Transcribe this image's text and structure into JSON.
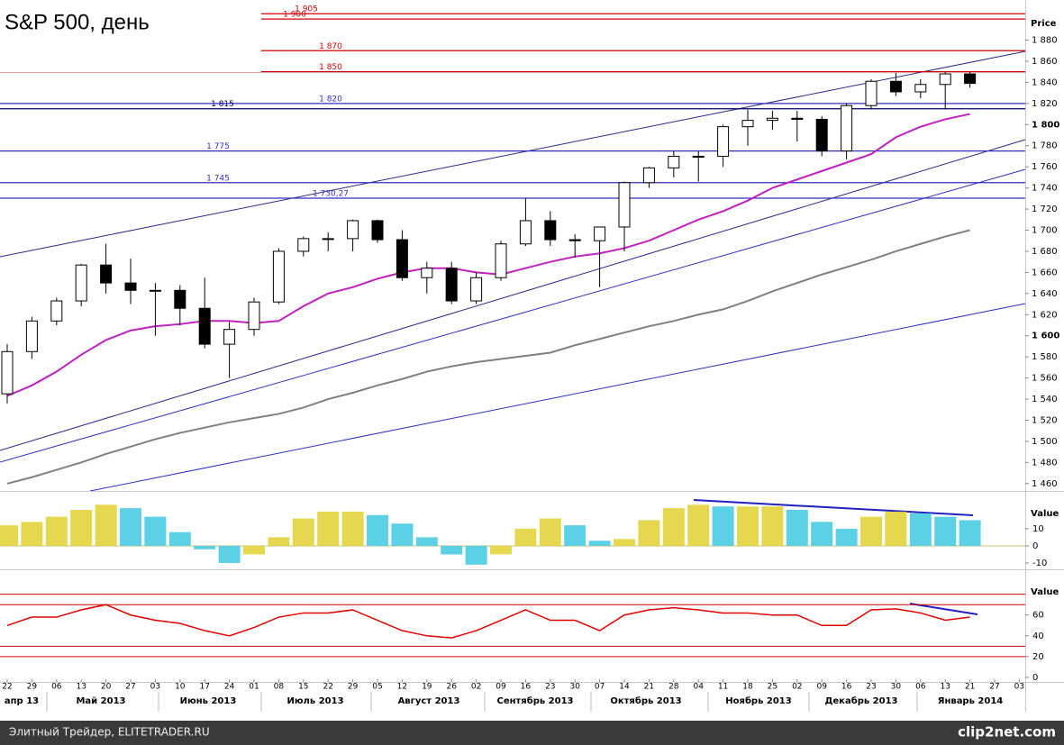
{
  "chart_data": {
    "type": "candlestick",
    "title": "S&P 500, день",
    "price_axis_title": "Price",
    "categories": [
      "22",
      "29",
      "06",
      "13",
      "20",
      "27",
      "03",
      "10",
      "17",
      "24",
      "01",
      "08",
      "15",
      "22",
      "29",
      "05",
      "12",
      "19",
      "26",
      "02",
      "09",
      "16",
      "23",
      "30",
      "07",
      "14",
      "21",
      "28",
      "04",
      "11",
      "18",
      "25",
      "02",
      "09",
      "16",
      "23",
      "30",
      "06",
      "13",
      "21",
      "27",
      "03"
    ],
    "months": [
      "апр 13",
      "Май 2013",
      "Июнь 2013",
      "Июль 2013",
      "Август 2013",
      "Сентябрь 2013",
      "Октябрь 2013",
      "Ноябрь 2013",
      "Декабрь 2013",
      "Январь 2014"
    ],
    "open": [
      1545,
      1585,
      1614,
      1633,
      1667,
      1650,
      1643,
      1643,
      1626,
      1592,
      1606,
      1632,
      1680,
      1692,
      1692,
      1709,
      1691,
      1655,
      1664,
      1633,
      1655,
      1687,
      1709,
      1691,
      1690,
      1703,
      1745,
      1759,
      1770,
      1770,
      1798,
      1804,
      1806,
      1805,
      1775,
      1818,
      1841,
      1831,
      1838,
      1848,
      null,
      null
    ],
    "high": [
      1592,
      1618,
      1636,
      1668,
      1687,
      1673,
      1650,
      1648,
      1655,
      1613,
      1636,
      1683,
      1694,
      1698,
      1710,
      1710,
      1700,
      1670,
      1670,
      1660,
      1690,
      1730,
      1718,
      1696,
      1703,
      1746,
      1760,
      1775,
      1775,
      1800,
      1814,
      1813,
      1813,
      1808,
      1820,
      1843,
      1849,
      1843,
      1850,
      1850,
      null,
      null
    ],
    "low": [
      1536,
      1578,
      1610,
      1628,
      1640,
      1630,
      1600,
      1610,
      1588,
      1560,
      1600,
      1630,
      1675,
      1680,
      1680,
      1688,
      1652,
      1640,
      1630,
      1630,
      1652,
      1685,
      1685,
      1674,
      1646,
      1680,
      1740,
      1750,
      1746,
      1760,
      1780,
      1795,
      1784,
      1770,
      1767,
      1815,
      1827,
      1825,
      1815,
      1835,
      null,
      null
    ],
    "close": [
      1585,
      1614,
      1633,
      1667,
      1650,
      1643,
      1643,
      1626,
      1592,
      1606,
      1632,
      1680,
      1692,
      1692,
      1709,
      1691,
      1655,
      1664,
      1633,
      1655,
      1687,
      1709,
      1691,
      1690,
      1703,
      1745,
      1759,
      1770,
      1770,
      1798,
      1804,
      1806,
      1805,
      1775,
      1818,
      1841,
      1831,
      1838,
      1848,
      1839,
      null,
      null
    ],
    "candle_colors": {
      "up": "#ffffff",
      "down": "#000000",
      "edge": "#000000"
    },
    "series": [
      {
        "color": "#c020c0",
        "values": [
          1543,
          1553,
          1566,
          1582,
          1596,
          1605,
          1609,
          1611,
          1614,
          1614,
          1612,
          1614,
          1628,
          1640,
          1646,
          1654,
          1660,
          1664,
          1664,
          1660,
          1658,
          1664,
          1670,
          1675,
          1678,
          1683,
          1690,
          1700,
          1710,
          1718,
          1728,
          1740,
          1748,
          1756,
          1764,
          1772,
          1788,
          1798,
          1805,
          1810,
          null,
          null
        ]
      },
      {
        "color": "#808080",
        "values": [
          1460,
          1466,
          1473,
          1480,
          1488,
          1495,
          1502,
          1508,
          1513,
          1518,
          1522,
          1526,
          1532,
          1540,
          1546,
          1553,
          1559,
          1566,
          1571,
          1575,
          1578,
          1581,
          1584,
          1591,
          1597,
          1603,
          1609,
          1614,
          1620,
          1625,
          1633,
          1642,
          1650,
          1658,
          1665,
          1672,
          1680,
          1687,
          1694,
          1700,
          null,
          null
        ]
      }
    ],
    "ylim": [
      1453,
      1918
    ],
    "yticks": [
      {
        "value": 1460,
        "label": "1 460"
      },
      {
        "value": 1480,
        "label": "1 480"
      },
      {
        "value": 1500,
        "label": "1 500"
      },
      {
        "value": 1520,
        "label": "1 520"
      },
      {
        "value": 1540,
        "label": "1 540"
      },
      {
        "value": 1560,
        "label": "1 560"
      },
      {
        "value": 1580,
        "label": "1 580"
      },
      {
        "value": 1600,
        "label": "1 600"
      },
      {
        "value": 1620,
        "label": "1 620"
      },
      {
        "value": 1640,
        "label": "1 640"
      },
      {
        "value": 1660,
        "label": "1 660"
      },
      {
        "value": 1680,
        "label": "1 680"
      },
      {
        "value": 1700,
        "label": "1 700"
      },
      {
        "value": 1720,
        "label": "1 720"
      },
      {
        "value": 1740,
        "label": "1 740"
      },
      {
        "value": 1760,
        "label": "1 760"
      },
      {
        "value": 1780,
        "label": "1 780"
      },
      {
        "value": 1800,
        "label": "1 800"
      },
      {
        "value": 1820,
        "label": "1 820"
      },
      {
        "value": 1840,
        "label": "1 840"
      },
      {
        "value": 1860,
        "label": "1 860"
      },
      {
        "value": 1880,
        "label": "1 880"
      }
    ],
    "levels": [
      {
        "value": 1905,
        "label": "1 905",
        "color": "#d00000"
      },
      {
        "value": 1900,
        "label": "1 900",
        "color": "#d00000"
      },
      {
        "value": 1870,
        "label": "1 870",
        "color": "#d00000"
      },
      {
        "value": 1850,
        "label": "1 850",
        "color": "#d00000"
      },
      {
        "value": 1820,
        "label": "1 820",
        "color": "#3030c0"
      },
      {
        "value": 1815,
        "label": "1 815",
        "color": "#000060"
      },
      {
        "value": 1775,
        "label": "1 775",
        "color": "#3030c0"
      },
      {
        "value": 1745,
        "label": "1 745",
        "color": "#3030c0"
      },
      {
        "value": 1730.27,
        "label": "1 730,27",
        "color": "#3030c0"
      }
    ],
    "macd": {
      "title": "Value",
      "values": [
        12,
        14,
        17,
        21,
        24,
        22,
        17,
        8,
        -2,
        -10,
        -5,
        5,
        16,
        20,
        20,
        18,
        13,
        5,
        -5,
        -11,
        -5,
        10,
        16,
        12,
        3,
        4,
        15,
        22,
        24,
        23,
        23,
        23,
        21,
        14,
        10,
        17,
        20,
        19,
        17,
        15,
        null,
        null
      ],
      "colors": {
        "rise": "#e0d030",
        "fall": "#40c8e0"
      },
      "ylim": [
        -13.7,
        31
      ],
      "yticks": [
        10,
        0,
        -10
      ]
    },
    "rsi": {
      "title": "Value",
      "color": "#e00000",
      "values": [
        50,
        58,
        58,
        65,
        70,
        60,
        55,
        52,
        45,
        40,
        48,
        58,
        62,
        62,
        65,
        55,
        45,
        40,
        38,
        45,
        55,
        65,
        55,
        55,
        45,
        60,
        65,
        67,
        65,
        62,
        62,
        60,
        60,
        50,
        50,
        65,
        66,
        62,
        55,
        58,
        null,
        null
      ],
      "levels": [
        80,
        70,
        30,
        20
      ],
      "ylim": [
        -7,
        91
      ],
      "yticks": [
        60,
        40,
        20,
        0
      ]
    },
    "footer": "Элитный Трейдер, ELITETRADER.RU",
    "watermark": "clip2net.com"
  }
}
